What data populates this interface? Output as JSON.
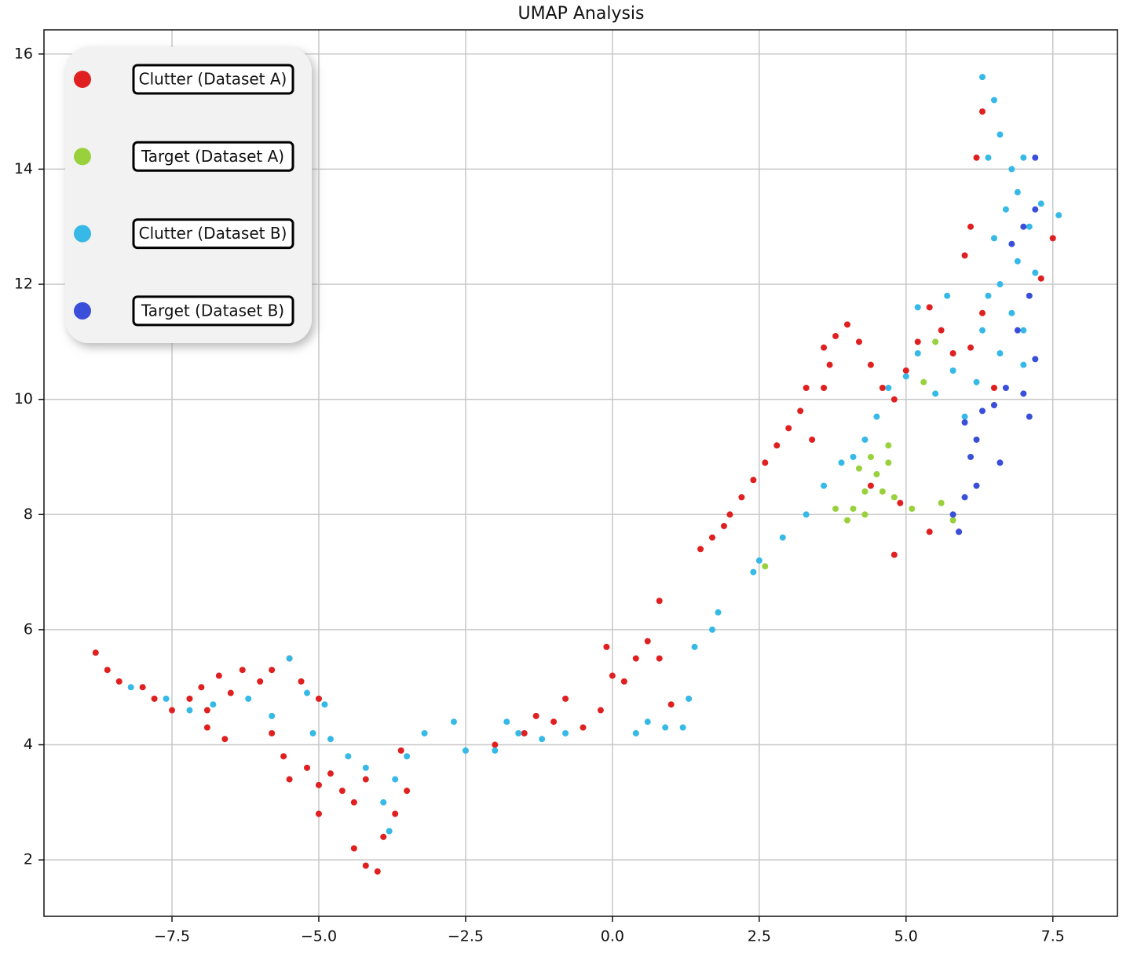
{
  "chart_data": {
    "type": "scatter",
    "title": "UMAP Analysis",
    "xlim": [
      -9.68,
      8.6
    ],
    "ylim": [
      1.02,
      16.42
    ],
    "xticks": [
      {
        "value": -7.5,
        "label": "−7.5"
      },
      {
        "value": -5,
        "label": "−5.0"
      },
      {
        "value": -2.5,
        "label": "−2.5"
      },
      {
        "value": 0,
        "label": "0.0"
      },
      2.5,
      {
        "value": 5,
        "label": "5.0"
      },
      7.5
    ],
    "yticks": [
      2,
      4,
      6,
      8,
      10,
      12,
      14,
      16
    ],
    "grid": true,
    "legend": "upper left",
    "series": [
      {
        "name": "Clutter (Dataset A)",
        "color": "#e02020",
        "x": [
          -8.8,
          -8.6,
          -8.4,
          -8.0,
          -7.8,
          -7.5,
          -7.2,
          -7.0,
          -6.9,
          -6.7,
          -6.5,
          -6.3,
          -6.0,
          -5.8,
          -5.5,
          -5.3,
          -5.0,
          -5.8,
          -5.6,
          -5.5,
          -5.2,
          -5.0,
          -4.8,
          -4.6,
          -4.4,
          -4.2,
          -4.4,
          -4.2,
          -4.0,
          -3.9,
          -3.7,
          -3.5,
          -3.6,
          -5.0,
          -6.6,
          -6.9,
          -2.0,
          -1.5,
          -1.3,
          -1.0,
          -0.8,
          -0.5,
          -0.2,
          0.0,
          0.2,
          0.4,
          0.6,
          0.8,
          0.8,
          1.0,
          -0.1,
          1.5,
          1.7,
          1.9,
          2.0,
          2.2,
          2.4,
          2.6,
          2.8,
          3.0,
          3.2,
          3.3,
          3.6,
          3.7,
          3.8,
          4.0,
          4.2,
          4.4,
          4.6,
          4.8,
          5.0,
          5.2,
          5.4,
          5.6,
          5.8,
          4.8,
          5.4,
          5.9,
          3.6,
          4.4,
          4.9,
          3.4,
          6.1,
          6.2,
          6.3,
          6.0,
          6.3,
          7.3,
          7.5,
          6.1,
          6.5
        ],
        "y": [
          5.6,
          5.3,
          5.1,
          5.0,
          4.8,
          4.6,
          4.8,
          5.0,
          4.6,
          5.2,
          4.9,
          5.3,
          5.1,
          5.3,
          5.5,
          5.1,
          4.8,
          4.2,
          3.8,
          3.4,
          3.6,
          3.3,
          3.5,
          3.2,
          3.0,
          3.4,
          2.2,
          1.9,
          1.8,
          2.4,
          2.8,
          3.2,
          3.9,
          2.8,
          4.1,
          4.3,
          4.0,
          4.2,
          4.5,
          4.4,
          4.8,
          4.3,
          4.6,
          5.2,
          5.1,
          5.5,
          5.8,
          5.5,
          6.5,
          4.7,
          5.7,
          7.4,
          7.6,
          7.8,
          8.0,
          8.3,
          8.6,
          8.9,
          9.2,
          9.5,
          9.8,
          10.2,
          10.2,
          10.6,
          11.1,
          11.3,
          11.0,
          10.6,
          10.2,
          10.0,
          10.5,
          11.0,
          11.6,
          11.2,
          10.8,
          7.3,
          7.7,
          7.7,
          10.9,
          8.5,
          8.2,
          9.3,
          13.0,
          14.2,
          15.0,
          12.5,
          11.5,
          12.1,
          12.8,
          10.9,
          10.2
        ]
      },
      {
        "name": "Target (Dataset A)",
        "color": "#99d13d",
        "x": [
          4.0,
          4.1,
          4.3,
          4.2,
          4.4,
          4.5,
          4.7,
          4.6,
          4.8,
          4.3,
          3.8,
          5.6,
          5.8,
          5.3,
          5.5,
          2.6,
          4.7,
          5.1
        ],
        "y": [
          7.9,
          8.1,
          8.0,
          8.8,
          9.0,
          8.7,
          9.2,
          8.4,
          8.3,
          8.4,
          8.1,
          8.2,
          7.9,
          10.3,
          11.0,
          7.1,
          8.9,
          8.1
        ]
      },
      {
        "name": "Clutter (Dataset B)",
        "color": "#36b9e6",
        "x": [
          -8.2,
          -7.6,
          -7.2,
          -6.8,
          -6.2,
          -5.8,
          -5.5,
          -5.2,
          -4.9,
          -5.1,
          -4.8,
          -4.5,
          -4.2,
          -3.9,
          -3.8,
          -3.7,
          -3.5,
          -3.2,
          -2.7,
          -2.5,
          -2.0,
          -1.8,
          -1.6,
          -1.2,
          -0.8,
          0.4,
          0.6,
          0.9,
          1.2,
          1.3,
          1.4,
          1.7,
          1.8,
          2.4,
          2.5,
          2.9,
          3.6,
          3.9,
          4.1,
          4.3,
          4.5,
          4.7,
          5.0,
          5.2,
          5.5,
          5.8,
          6.0,
          6.2,
          6.3,
          6.4,
          6.6,
          6.8,
          7.0,
          6.5,
          6.7,
          6.9,
          7.1,
          7.3,
          7.6,
          6.4,
          6.6,
          6.8,
          7.0,
          6.3,
          6.5,
          6.9,
          7.2,
          6.6,
          7.0,
          3.3,
          5.2,
          5.7
        ],
        "y": [
          5.0,
          4.8,
          4.6,
          4.7,
          4.8,
          4.5,
          5.5,
          4.9,
          4.7,
          4.2,
          4.1,
          3.8,
          3.6,
          3.0,
          2.5,
          3.4,
          3.8,
          4.2,
          4.4,
          3.9,
          3.9,
          4.4,
          4.2,
          4.1,
          4.2,
          4.2,
          4.4,
          4.3,
          4.3,
          4.8,
          5.7,
          6.0,
          6.3,
          7.0,
          7.2,
          7.6,
          8.5,
          8.9,
          9.0,
          9.3,
          9.7,
          10.2,
          10.4,
          10.8,
          10.1,
          10.5,
          9.7,
          10.3,
          11.2,
          11.8,
          12.0,
          11.5,
          11.2,
          12.8,
          13.3,
          13.6,
          13.0,
          13.4,
          13.2,
          14.2,
          14.6,
          14.0,
          14.2,
          15.6,
          15.2,
          12.4,
          12.2,
          10.8,
          10.6,
          8.0,
          11.6,
          11.8
        ]
      },
      {
        "name": "Target (Dataset B)",
        "color": "#3a4fd9",
        "x": [
          5.9,
          5.8,
          6.0,
          6.2,
          6.1,
          6.2,
          6.0,
          6.3,
          6.5,
          6.6,
          6.7,
          7.0,
          7.1,
          7.2,
          6.9,
          7.1,
          7.0,
          7.2,
          6.8,
          7.2
        ],
        "y": [
          7.7,
          8.0,
          8.3,
          8.5,
          9.0,
          9.3,
          9.6,
          9.8,
          9.9,
          8.9,
          10.2,
          10.1,
          9.7,
          10.7,
          11.2,
          11.8,
          13.0,
          13.3,
          12.7,
          14.2
        ]
      }
    ]
  }
}
